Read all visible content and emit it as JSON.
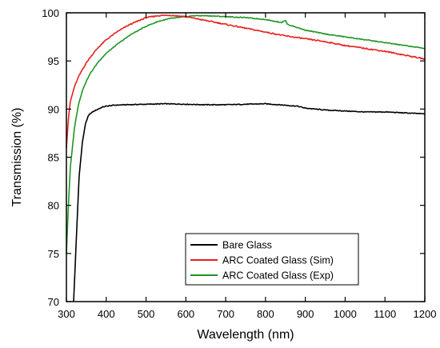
{
  "chart_data": {
    "type": "line",
    "xlabel": "Wavelength (nm)",
    "ylabel": "Transmission (%)",
    "xlim": [
      300,
      1200
    ],
    "ylim": [
      70,
      100
    ],
    "x_ticks": [
      300,
      400,
      500,
      600,
      700,
      800,
      900,
      1000,
      1100,
      1200
    ],
    "y_ticks": [
      70,
      75,
      80,
      85,
      90,
      95,
      100
    ],
    "grid": false,
    "legend_position": "bottom-right",
    "series": [
      {
        "name": "Bare Glass",
        "color": "#000000",
        "x": [
          318,
          325,
          332,
          340,
          348,
          355,
          362,
          370,
          380,
          390,
          400,
          420,
          450,
          500,
          550,
          600,
          650,
          700,
          750,
          800,
          850,
          880,
          900,
          950,
          1000,
          1050,
          1100,
          1150,
          1200
        ],
        "y": [
          70,
          76.5,
          83,
          86.5,
          88.5,
          89.3,
          89.6,
          89.8,
          90.0,
          90.2,
          90.3,
          90.4,
          90.45,
          90.5,
          90.55,
          90.5,
          90.45,
          90.45,
          90.5,
          90.55,
          90.4,
          90.3,
          90.1,
          89.9,
          89.8,
          89.7,
          89.7,
          89.6,
          89.5
        ]
      },
      {
        "name": "ARC Coated Glass (Sim)",
        "color": "#e8201c",
        "x": [
          300,
          305,
          310,
          320,
          330,
          340,
          350,
          360,
          380,
          400,
          430,
          460,
          500,
          530,
          560,
          600,
          650,
          700,
          750,
          800,
          850,
          900,
          950,
          1000,
          1050,
          1100,
          1150,
          1200
        ],
        "y": [
          86,
          89,
          90.8,
          92.3,
          93.3,
          94.1,
          94.8,
          95.4,
          96.4,
          97.2,
          98.1,
          98.8,
          99.5,
          99.7,
          99.75,
          99.6,
          99.2,
          98.8,
          98.4,
          98.0,
          97.6,
          97.3,
          97.0,
          96.6,
          96.3,
          96.0,
          95.6,
          95.2
        ]
      },
      {
        "name": "ARC Coated Glass (Exp)",
        "color": "#1e9622",
        "x": [
          300,
          305,
          310,
          320,
          330,
          340,
          350,
          360,
          380,
          400,
          430,
          460,
          500,
          530,
          560,
          600,
          620,
          650,
          700,
          750,
          800,
          840,
          850,
          855,
          870,
          900,
          950,
          1000,
          1050,
          1100,
          1150,
          1200
        ],
        "y": [
          75,
          80,
          84,
          88,
          90.4,
          91.9,
          92.9,
          93.7,
          94.9,
          95.8,
          96.8,
          97.7,
          98.6,
          99.1,
          99.4,
          99.6,
          99.7,
          99.7,
          99.6,
          99.5,
          99.3,
          99.0,
          99.2,
          98.8,
          98.6,
          98.2,
          97.8,
          97.5,
          97.2,
          96.9,
          96.6,
          96.3
        ]
      }
    ]
  }
}
